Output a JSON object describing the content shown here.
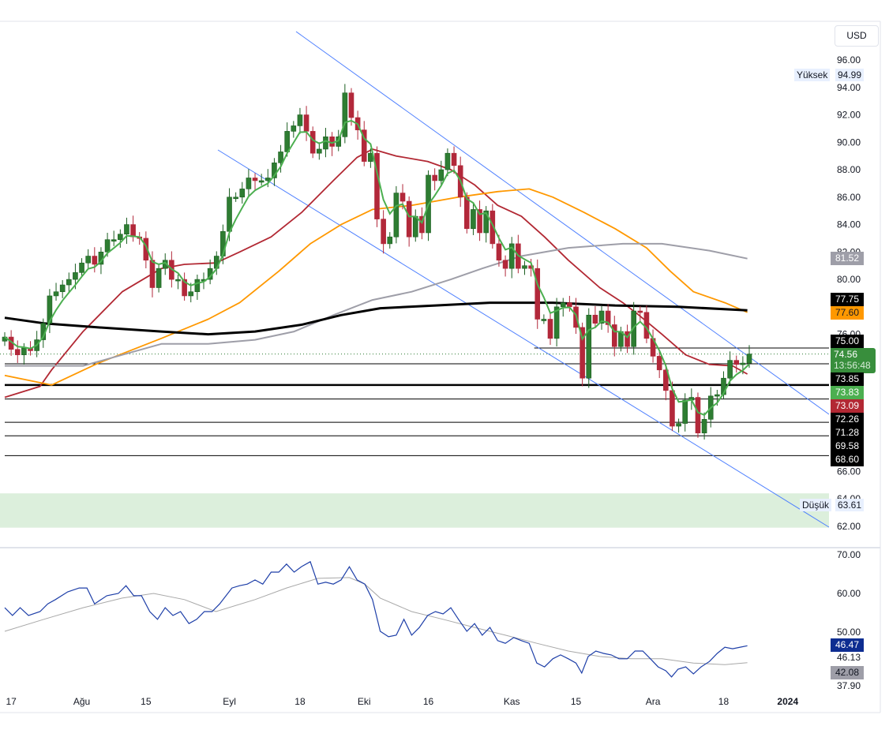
{
  "currency_button": "USD",
  "colors": {
    "up": "#2e7d32",
    "down": "#b2283a",
    "ma_fast": "#4caf50",
    "ma_mid": "#b22833",
    "ma_orange": "#ff9800",
    "ma_gray": "#9e9ea8",
    "ma_black": "#000000",
    "channel": "#4d7fff",
    "rsi": "#1e3fa8",
    "rsi_ma": "#a8a8a8",
    "zone": "#dcefdc"
  },
  "chart_data": {
    "type": "candlestick",
    "price_axis": {
      "ylim": [
        62,
        96
      ],
      "ticks": [
        "96.00",
        "94.00",
        "92.00",
        "90.00",
        "88.00",
        "86.00",
        "84.00",
        "82.00",
        "80.00",
        "78.00",
        "76.00",
        "74.00",
        "72.00",
        "70.00",
        "68.00",
        "66.00",
        "64.00",
        "62.00"
      ]
    },
    "time_axis": {
      "ticks": [
        {
          "bar": 1,
          "label": "17"
        },
        {
          "bar": 12,
          "label": "Ağu"
        },
        {
          "bar": 22,
          "label": "15"
        },
        {
          "bar": 35,
          "label": "Eyl"
        },
        {
          "bar": 46,
          "label": "18"
        },
        {
          "bar": 56,
          "label": "Eki"
        },
        {
          "bar": 66,
          "label": "16"
        },
        {
          "bar": 79,
          "label": "Kas"
        },
        {
          "bar": 89,
          "label": "15"
        },
        {
          "bar": 101,
          "label": "Ara"
        },
        {
          "bar": 112,
          "label": "18"
        },
        {
          "bar": 122,
          "label": "2024"
        }
      ]
    },
    "closes": [
      75.8,
      74.9,
      74.5,
      75.0,
      74.8,
      75.6,
      76.8,
      78.8,
      79.1,
      79.6,
      80.0,
      80.5,
      81.2,
      81.7,
      81.1,
      82.0,
      82.9,
      82.9,
      83.3,
      84.0,
      83.1,
      83.0,
      81.4,
      79.4,
      80.8,
      81.4,
      80.0,
      80.0,
      78.8,
      79.1,
      80.0,
      80.0,
      80.8,
      81.7,
      83.5,
      86.0,
      86.0,
      86.6,
      87.4,
      87.2,
      87.2,
      87.4,
      88.5,
      89.3,
      90.8,
      91.2,
      92.0,
      90.8,
      89.2,
      89.5,
      90.4,
      89.7,
      90.4,
      93.6,
      91.8,
      90.9,
      88.6,
      89.2,
      84.4,
      82.6,
      83.1,
      86.3,
      85.7,
      83.1,
      84.6,
      83.4,
      87.6,
      87.2,
      88.0,
      89.2,
      88.3,
      86.0,
      83.7,
      85.1,
      83.4,
      85.0,
      82.6,
      81.4,
      80.8,
      82.6,
      80.8,
      81.0,
      80.8,
      77.1,
      77.1,
      75.7,
      78.0,
      78.3,
      78.0,
      76.5,
      72.8,
      77.4,
      76.8,
      77.7,
      76.7,
      75.1,
      76.2,
      75.1,
      77.7,
      77.6,
      75.7,
      74.4,
      73.4,
      71.9,
      69.3,
      69.5,
      71.2,
      71.4,
      68.8,
      69.8,
      71.5,
      71.6,
      72.8,
      74.1,
      73.8,
      73.9,
      74.56
    ],
    "moving_averages": [
      {
        "id": "ma-red",
        "points": [
          [
            0,
            71.4
          ],
          [
            5.5,
            72.2
          ],
          [
            7.3,
            73.4
          ],
          [
            12.2,
            76.2
          ],
          [
            18.3,
            79.1
          ],
          [
            24.4,
            80.8
          ],
          [
            28,
            81.1
          ],
          [
            32.9,
            81.2
          ],
          [
            36.6,
            82
          ],
          [
            41.5,
            83.1
          ],
          [
            46.3,
            84.9
          ],
          [
            51.2,
            87.2
          ],
          [
            54.9,
            88.9
          ],
          [
            57.3,
            89.5
          ],
          [
            61,
            89
          ],
          [
            65.9,
            88.6
          ],
          [
            69.5,
            88
          ],
          [
            73.2,
            86.9
          ],
          [
            76.8,
            85.4
          ],
          [
            80.5,
            84.6
          ],
          [
            84.1,
            83.1
          ],
          [
            87.8,
            81.4
          ],
          [
            92.7,
            79.4
          ],
          [
            96.3,
            78.3
          ],
          [
            98.8,
            77.4
          ],
          [
            102.4,
            76
          ],
          [
            106.1,
            74.5
          ],
          [
            109.8,
            73.8
          ],
          [
            113.4,
            73.7
          ],
          [
            115.7,
            73.1
          ]
        ]
      },
      {
        "id": "ma-orange",
        "points": [
          [
            0,
            73.0
          ],
          [
            7.3,
            72.3
          ],
          [
            14.6,
            73.9
          ],
          [
            24.4,
            75.7
          ],
          [
            31.7,
            77.1
          ],
          [
            36.6,
            78.3
          ],
          [
            42.7,
            80.6
          ],
          [
            47.6,
            82.6
          ],
          [
            52.4,
            84
          ],
          [
            57.3,
            85.1
          ],
          [
            63.4,
            85.4
          ],
          [
            70.7,
            86
          ],
          [
            76.8,
            86.4
          ],
          [
            81.7,
            86.6
          ],
          [
            85.4,
            86
          ],
          [
            90.2,
            84.9
          ],
          [
            95.1,
            83.7
          ],
          [
            100,
            82.3
          ],
          [
            103.7,
            80.6
          ],
          [
            107.3,
            79.1
          ],
          [
            112.2,
            78.3
          ],
          [
            115.7,
            77.6
          ]
        ]
      },
      {
        "id": "ma-gray",
        "points": [
          [
            0,
            73.7
          ],
          [
            12.2,
            73.7
          ],
          [
            18.3,
            74.5
          ],
          [
            24.4,
            75.3
          ],
          [
            31.7,
            75.3
          ],
          [
            39,
            75.6
          ],
          [
            45.1,
            76.2
          ],
          [
            51.2,
            77.4
          ],
          [
            57.3,
            78.5
          ],
          [
            63.4,
            79.1
          ],
          [
            69.5,
            80
          ],
          [
            74.4,
            80.8
          ],
          [
            80.5,
            81.7
          ],
          [
            87.8,
            82.3
          ],
          [
            96.3,
            82.6
          ],
          [
            102.4,
            82.6
          ],
          [
            109.8,
            82.1
          ],
          [
            115.7,
            81.52
          ]
        ]
      },
      {
        "id": "ma-black",
        "points": [
          [
            0,
            77.2
          ],
          [
            6.1,
            76.8
          ],
          [
            14.6,
            76.5
          ],
          [
            24.4,
            76.2
          ],
          [
            31.7,
            76
          ],
          [
            39,
            76.2
          ],
          [
            46.3,
            76.7
          ],
          [
            52.4,
            77.4
          ],
          [
            58.5,
            77.9
          ],
          [
            67.1,
            78.1
          ],
          [
            75.6,
            78.3
          ],
          [
            85.4,
            78.3
          ],
          [
            95.1,
            78.1
          ],
          [
            104.9,
            78
          ],
          [
            115.7,
            77.75
          ]
        ]
      }
    ],
    "horizontal_levels": [
      {
        "price": 75.0,
        "from_bar": 82.5,
        "bold": false
      },
      {
        "price": 73.85,
        "from_bar": 0,
        "bold": false
      },
      {
        "price": 72.3,
        "from_bar": 0,
        "bold": true
      },
      {
        "price": 71.28,
        "from_bar": 0,
        "bold": false
      },
      {
        "price": 69.58,
        "from_bar": 0,
        "bold": false
      },
      {
        "price": 68.6,
        "from_bar": 0,
        "bold": false
      },
      {
        "price": 67.15,
        "from_bar": 0,
        "bold": false
      }
    ],
    "zone": {
      "from": 61.9,
      "to": 64.4
    },
    "price_labels": {
      "ma_black": "77.75",
      "ma_orange": "77.60",
      "level_75": "75.00",
      "last": "74.56",
      "countdown": "13:56:48",
      "level_7385": "73.85",
      "ma_fast": "73.83",
      "ma_red": "73.09",
      "level_7226": "72.26",
      "level_7128": "71.28",
      "level_6958": "69.58",
      "level_6860": "68.60",
      "ma_gray": "81.52"
    },
    "high": {
      "label": "Yüksek",
      "value": "94.99"
    },
    "low": {
      "label": "Düşük",
      "value": "63.61"
    },
    "rsi": {
      "ylim": [
        36,
        72
      ],
      "ticks": [
        "70.00",
        "60.00",
        "50.00"
      ],
      "band_labels": [
        "46.13",
        "37.90"
      ],
      "value_label": "46.47",
      "ma_label": "42.08",
      "line": [
        [
          0,
          56.3
        ],
        [
          1.2,
          54.3
        ],
        [
          2.4,
          56.3
        ],
        [
          3.7,
          54.3
        ],
        [
          5.5,
          55.3
        ],
        [
          6.7,
          57.3
        ],
        [
          7.9,
          58.4
        ],
        [
          9.8,
          60.4
        ],
        [
          11.6,
          61.4
        ],
        [
          12.8,
          61.4
        ],
        [
          14,
          57.3
        ],
        [
          15.9,
          59.4
        ],
        [
          17.7,
          60
        ],
        [
          18.9,
          62
        ],
        [
          20.1,
          59.4
        ],
        [
          21.3,
          59.4
        ],
        [
          22.6,
          55.3
        ],
        [
          23.8,
          53.3
        ],
        [
          25,
          56.3
        ],
        [
          26.2,
          54.3
        ],
        [
          27.4,
          55.3
        ],
        [
          28.7,
          52.2
        ],
        [
          29.9,
          53.3
        ],
        [
          31.1,
          55.3
        ],
        [
          32.3,
          55.3
        ],
        [
          33.5,
          57.3
        ],
        [
          35.4,
          61.4
        ],
        [
          36.6,
          62
        ],
        [
          37.8,
          62.4
        ],
        [
          39,
          63.5
        ],
        [
          40.2,
          62.4
        ],
        [
          41.5,
          65.5
        ],
        [
          42.7,
          65.5
        ],
        [
          43.9,
          67.6
        ],
        [
          45.1,
          65.5
        ],
        [
          46.3,
          67
        ],
        [
          47.6,
          68.2
        ],
        [
          48.8,
          62.4
        ],
        [
          50,
          62.9
        ],
        [
          51.2,
          62.4
        ],
        [
          52.4,
          63.5
        ],
        [
          53.7,
          66.9
        ],
        [
          54.9,
          63.5
        ],
        [
          56.1,
          62.4
        ],
        [
          57.3,
          58.4
        ],
        [
          58.5,
          50.2
        ],
        [
          59.8,
          48.8
        ],
        [
          61,
          49.2
        ],
        [
          62.2,
          53.3
        ],
        [
          63.4,
          49.2
        ],
        [
          64.6,
          51.2
        ],
        [
          65.9,
          54.3
        ],
        [
          67.1,
          55.3
        ],
        [
          68.3,
          54.7
        ],
        [
          69.5,
          56.3
        ],
        [
          70.7,
          53.3
        ],
        [
          72,
          50.2
        ],
        [
          73.2,
          52.2
        ],
        [
          74.4,
          49.2
        ],
        [
          75.6,
          51.2
        ],
        [
          76.8,
          47.8
        ],
        [
          78,
          47.1
        ],
        [
          79.3,
          48.6
        ],
        [
          80.5,
          47.8
        ],
        [
          81.7,
          47.1
        ],
        [
          82.9,
          42
        ],
        [
          84.1,
          41
        ],
        [
          85.4,
          43.1
        ],
        [
          86.6,
          44.1
        ],
        [
          87.8,
          43.1
        ],
        [
          89,
          42
        ],
        [
          89.9,
          39.4
        ],
        [
          90.9,
          43.7
        ],
        [
          92.1,
          45.1
        ],
        [
          93.3,
          44.5
        ],
        [
          94.5,
          44.1
        ],
        [
          95.7,
          43.1
        ],
        [
          97,
          43.1
        ],
        [
          98.2,
          45.1
        ],
        [
          99.4,
          45.1
        ],
        [
          100.6,
          43.1
        ],
        [
          101.8,
          41
        ],
        [
          103,
          40
        ],
        [
          103.9,
          38.4
        ],
        [
          104.9,
          40.4
        ],
        [
          106.1,
          41
        ],
        [
          107.3,
          39.2
        ],
        [
          108.5,
          41
        ],
        [
          109.8,
          42.4
        ],
        [
          111,
          44.5
        ],
        [
          112.2,
          46.1
        ],
        [
          113.4,
          45.7
        ],
        [
          114.6,
          46.1
        ],
        [
          115.7,
          46.47
        ]
      ],
      "ma": [
        [
          0,
          50.2
        ],
        [
          6.1,
          53.3
        ],
        [
          12.2,
          56.3
        ],
        [
          18.3,
          58.8
        ],
        [
          23.2,
          60
        ],
        [
          28,
          58.4
        ],
        [
          32.9,
          55.3
        ],
        [
          39,
          58.4
        ],
        [
          43.9,
          61.4
        ],
        [
          48.8,
          63.9
        ],
        [
          53.7,
          64.1
        ],
        [
          56.1,
          62.4
        ],
        [
          58.5,
          58.8
        ],
        [
          63.4,
          55.3
        ],
        [
          68.3,
          53.3
        ],
        [
          73.2,
          51.2
        ],
        [
          78,
          49.2
        ],
        [
          82.9,
          47.1
        ],
        [
          87.8,
          45.1
        ],
        [
          92.7,
          43.7
        ],
        [
          97.6,
          43.1
        ],
        [
          102.4,
          43.1
        ],
        [
          107.3,
          42
        ],
        [
          112.2,
          41.6
        ],
        [
          115.7,
          42.08
        ]
      ]
    }
  }
}
